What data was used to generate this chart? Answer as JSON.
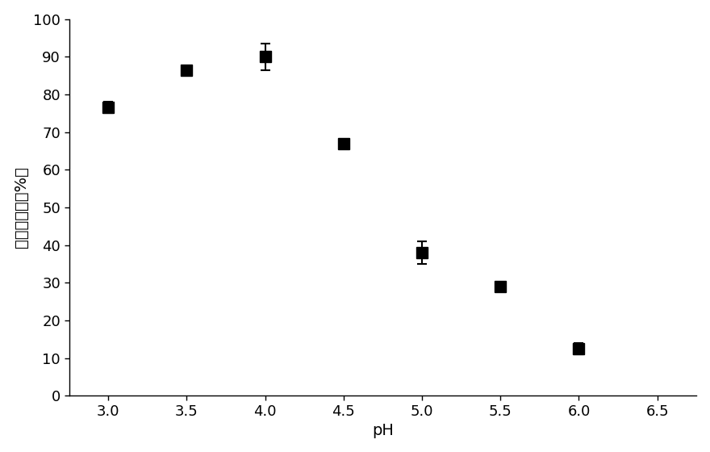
{
  "x": [
    3.0,
    3.5,
    4.0,
    4.5,
    5.0,
    5.5,
    6.0
  ],
  "y": [
    76.5,
    86.5,
    90.0,
    67.0,
    38.0,
    29.0,
    12.5
  ],
  "yerr": [
    1.5,
    0.0,
    3.5,
    0.0,
    3.0,
    0.0,
    1.5
  ],
  "marker": "s",
  "marker_color": "#000000",
  "marker_size": 10,
  "xlabel": "pH",
  "ylabel": "蛋白回收率（%）",
  "xlim": [
    2.75,
    6.75
  ],
  "ylim": [
    0,
    100
  ],
  "xticks": [
    3.0,
    3.5,
    4.0,
    4.5,
    5.0,
    5.5,
    6.0,
    6.5
  ],
  "yticks": [
    0,
    10,
    20,
    30,
    40,
    50,
    60,
    70,
    80,
    90,
    100
  ],
  "xlabel_fontsize": 14,
  "ylabel_fontsize": 14,
  "tick_fontsize": 13,
  "background_color": "#ffffff",
  "capsize": 4,
  "elinewidth": 1.5,
  "capthick": 1.5
}
